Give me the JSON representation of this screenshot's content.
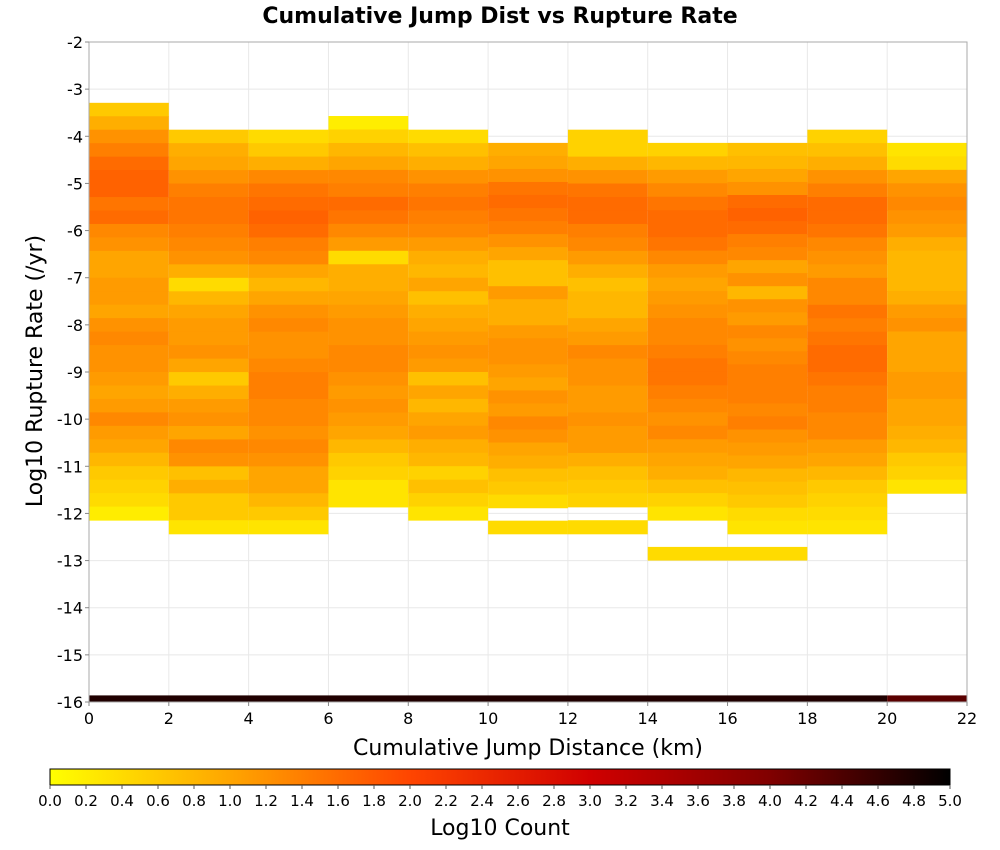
{
  "chart_data": {
    "type": "heatmap",
    "title": "Cumulative Jump Dist vs Rupture Rate",
    "xlabel": "Cumulative Jump Distance (km)",
    "ylabel": "Log10 Rupture Rate (/yr)",
    "xlim": [
      0,
      22
    ],
    "ylim": [
      -16,
      -2
    ],
    "x_ticks": [
      0,
      2,
      4,
      6,
      8,
      10,
      12,
      14,
      16,
      18,
      20,
      22
    ],
    "y_ticks": [
      -2,
      -3,
      -4,
      -5,
      -6,
      -7,
      -8,
      -9,
      -10,
      -11,
      -12,
      -13,
      -14,
      -15,
      -16
    ],
    "grid": true,
    "x_bin_width": 2,
    "y_bin_height": 0.2857,
    "colorbar": {
      "label": "Log10 Count",
      "min": 0.0,
      "max": 5.0,
      "ticks": [
        "0.0",
        "0.2",
        "0.4",
        "0.6",
        "0.8",
        "1.0",
        "1.2",
        "1.4",
        "1.6",
        "1.8",
        "2.0",
        "2.2",
        "2.4",
        "2.6",
        "2.8",
        "3.0",
        "3.2",
        "3.4",
        "3.6",
        "3.8",
        "4.0",
        "4.2",
        "4.4",
        "4.6",
        "4.8",
        "5.0"
      ],
      "colors": [
        "#ffff00",
        "#ffa500",
        "#ff4500",
        "#d00000",
        "#800000",
        "#000000"
      ]
    },
    "columns": [
      {
        "x0": 0,
        "y_top": -3.29,
        "y_bottom": -12.14,
        "values": [
          0.6,
          0.9,
          1.2,
          1.4,
          1.6,
          1.7,
          1.7,
          1.5,
          1.6,
          1.3,
          1.2,
          1.0,
          1.0,
          1.1,
          1.1,
          1.0,
          1.2,
          1.3,
          1.2,
          1.2,
          1.1,
          1.0,
          1.1,
          1.3,
          1.1,
          1.0,
          0.8,
          0.6,
          0.5,
          0.4,
          0.2
        ]
      },
      {
        "x0": 2,
        "y_top": -3.86,
        "y_bottom": -12.43,
        "values": [
          0.6,
          0.9,
          1.0,
          1.2,
          1.4,
          1.5,
          1.5,
          1.4,
          1.3,
          1.2,
          0.9,
          0.4,
          0.8,
          1.0,
          1.1,
          1.1,
          1.2,
          1.0,
          0.6,
          0.9,
          1.1,
          1.2,
          1.0,
          1.3,
          1.2,
          0.7,
          0.9,
          0.6,
          0.6,
          0.3
        ]
      },
      {
        "x0": 4,
        "y_top": -3.86,
        "y_bottom": -12.43,
        "values": [
          0.4,
          0.6,
          0.9,
          1.3,
          1.5,
          1.6,
          1.7,
          1.6,
          1.4,
          1.3,
          1.0,
          0.8,
          1.0,
          1.2,
          1.3,
          1.2,
          1.2,
          1.3,
          1.4,
          1.4,
          1.3,
          1.3,
          1.2,
          1.3,
          1.2,
          1.0,
          1.0,
          0.8,
          0.6,
          0.3
        ]
      },
      {
        "x0": 6,
        "y_top": -3.57,
        "y_bottom": -11.86,
        "values": [
          0.2,
          0.5,
          0.8,
          1.0,
          1.3,
          1.4,
          1.6,
          1.5,
          1.3,
          1.1,
          0.4,
          0.9,
          0.9,
          1.0,
          1.1,
          1.2,
          1.2,
          1.3,
          1.3,
          1.2,
          1.1,
          1.2,
          1.1,
          1.0,
          0.8,
          0.6,
          0.5,
          0.3,
          0.3
        ]
      },
      {
        "x0": 8,
        "y_top": -3.86,
        "y_bottom": -12.14,
        "values": [
          0.4,
          0.7,
          0.9,
          1.2,
          1.4,
          1.5,
          1.4,
          1.3,
          1.1,
          0.9,
          0.8,
          1.0,
          0.7,
          0.9,
          1.0,
          1.1,
          1.2,
          1.1,
          0.7,
          1.0,
          0.8,
          1.0,
          1.1,
          0.9,
          0.8,
          0.5,
          0.7,
          0.5,
          0.3
        ]
      },
      {
        "x0": 10,
        "y_top": -4.14,
        "y_bottom": -12.43,
        "values": [
          0.9,
          1.0,
          1.2,
          1.5,
          1.6,
          1.5,
          1.4,
          1.2,
          1.0,
          0.7,
          0.7,
          1.1,
          0.9,
          0.9,
          1.1,
          1.2,
          1.2,
          1.1,
          1.0,
          1.2,
          1.1,
          1.3,
          1.2,
          1.0,
          0.9,
          0.7,
          0.6,
          0.4,
          null,
          0.4
        ]
      },
      {
        "x0": 12,
        "y_top": -3.86,
        "y_bottom": -12.43,
        "values": [
          0.5,
          0.5,
          0.9,
          1.2,
          1.5,
          1.6,
          1.6,
          1.4,
          1.3,
          1.1,
          0.9,
          0.7,
          0.8,
          0.8,
          1.0,
          1.1,
          1.3,
          1.2,
          1.2,
          1.1,
          1.1,
          1.2,
          1.1,
          1.1,
          0.9,
          0.7,
          0.6,
          0.5,
          null,
          0.4
        ]
      },
      {
        "x0": 14,
        "y_top": -4.14,
        "y_bottom": -12.14,
        "values": [
          0.5,
          0.8,
          1.1,
          1.3,
          1.5,
          1.6,
          1.6,
          1.5,
          1.3,
          1.1,
          1.0,
          1.1,
          1.2,
          1.3,
          1.3,
          1.4,
          1.5,
          1.5,
          1.4,
          1.3,
          1.2,
          1.3,
          1.1,
          1.0,
          0.9,
          0.7,
          0.5,
          0.3
        ]
      },
      {
        "x0": 16,
        "y_top": -4.14,
        "y_bottom": -12.43,
        "values": [
          0.7,
          0.8,
          1.0,
          1.2,
          1.6,
          1.7,
          1.6,
          1.4,
          1.3,
          1.0,
          1.2,
          0.8,
          1.2,
          1.1,
          1.3,
          1.2,
          1.3,
          1.4,
          1.4,
          1.4,
          1.3,
          1.4,
          1.2,
          1.1,
          1.0,
          0.8,
          0.7,
          0.6,
          0.4,
          0.3
        ]
      },
      {
        "x0": 18,
        "y_top": -3.86,
        "y_bottom": -12.43,
        "values": [
          0.5,
          0.7,
          0.9,
          1.2,
          1.4,
          1.6,
          1.6,
          1.5,
          1.3,
          1.2,
          1.1,
          1.3,
          1.3,
          1.5,
          1.4,
          1.5,
          1.6,
          1.6,
          1.5,
          1.4,
          1.4,
          1.3,
          1.3,
          1.1,
          1.0,
          0.8,
          0.6,
          0.5,
          0.4,
          0.3
        ]
      },
      {
        "x0": 20,
        "y_top": -4.14,
        "y_bottom": -11.57,
        "values": [
          0.3,
          0.4,
          1.0,
          1.2,
          1.3,
          1.2,
          1.1,
          0.9,
          0.8,
          0.8,
          0.8,
          0.9,
          1.1,
          1.2,
          1.0,
          1.0,
          1.0,
          1.1,
          1.1,
          1.0,
          1.0,
          0.9,
          0.8,
          0.6,
          0.5,
          0.3
        ]
      }
    ],
    "extra_cells": [
      {
        "x0": 14,
        "x1": 18,
        "y_top": -12.71,
        "y_bottom": -13.0,
        "value": 0.4
      }
    ],
    "floor_band": {
      "y_top": -15.86,
      "y_bottom": -16.0,
      "segments": [
        {
          "x0": 0,
          "x1": 20,
          "value": 4.75
        },
        {
          "x0": 20,
          "x1": 22,
          "value": 4.3
        }
      ]
    }
  }
}
